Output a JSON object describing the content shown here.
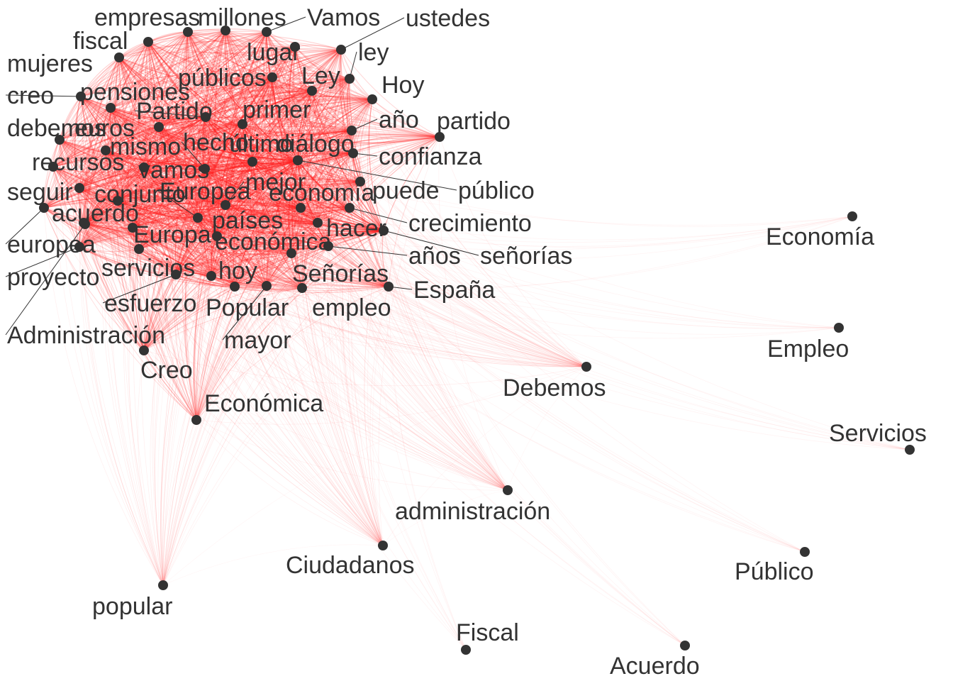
{
  "colors": {
    "edge": "#ff2020",
    "node": "#333333",
    "label": "#333333",
    "background": "#ffffff"
  },
  "nodes": [
    {
      "id": "empresas",
      "label": "empresas"
    },
    {
      "id": "millones",
      "label": "millones"
    },
    {
      "id": "Vamos",
      "label": "Vamos"
    },
    {
      "id": "ustedes",
      "label": "ustedes"
    },
    {
      "id": "fiscal",
      "label": "fiscal"
    },
    {
      "id": "lugar",
      "label": "lugar"
    },
    {
      "id": "ley",
      "label": "ley"
    },
    {
      "id": "mujeres",
      "label": "mujeres"
    },
    {
      "id": "publicos",
      "label": "públicos"
    },
    {
      "id": "Ley",
      "label": "Ley"
    },
    {
      "id": "Hoy",
      "label": "Hoy"
    },
    {
      "id": "creo",
      "label": "creo"
    },
    {
      "id": "pensiones",
      "label": "pensiones"
    },
    {
      "id": "Partido",
      "label": "Partido"
    },
    {
      "id": "primer",
      "label": "primer"
    },
    {
      "id": "ano",
      "label": "año"
    },
    {
      "id": "partido",
      "label": "partido"
    },
    {
      "id": "debemos",
      "label": "debemos"
    },
    {
      "id": "euros",
      "label": "euros"
    },
    {
      "id": "mismo",
      "label": "mismo"
    },
    {
      "id": "hecho",
      "label": "hecho"
    },
    {
      "id": "ultimo",
      "label": "último"
    },
    {
      "id": "dialogo",
      "label": "diálogo"
    },
    {
      "id": "confianza",
      "label": "confianza"
    },
    {
      "id": "recursos",
      "label": "recursos"
    },
    {
      "id": "vamos",
      "label": "vamos"
    },
    {
      "id": "mejor",
      "label": "mejor"
    },
    {
      "id": "seguir",
      "label": "seguir"
    },
    {
      "id": "conjunto",
      "label": "conjunto"
    },
    {
      "id": "Europea",
      "label": "Europea"
    },
    {
      "id": "economia",
      "label": "economía"
    },
    {
      "id": "puede",
      "label": "puede"
    },
    {
      "id": "publico",
      "label": "público"
    },
    {
      "id": "acuerdo",
      "label": "acuerdo"
    },
    {
      "id": "paises",
      "label": "países"
    },
    {
      "id": "hacer",
      "label": "hacer"
    },
    {
      "id": "crecimiento",
      "label": "crecimiento"
    },
    {
      "id": "europea",
      "label": "europea"
    },
    {
      "id": "Europa",
      "label": "Europa"
    },
    {
      "id": "economica",
      "label": "económica"
    },
    {
      "id": "anos",
      "label": "años"
    },
    {
      "id": "senorias",
      "label": "señorías"
    },
    {
      "id": "proyecto",
      "label": "proyecto"
    },
    {
      "id": "servicios",
      "label": "servicios"
    },
    {
      "id": "hoy",
      "label": "hoy"
    },
    {
      "id": "Senorias",
      "label": "Señorías"
    },
    {
      "id": "Espana",
      "label": "España"
    },
    {
      "id": "esfuerzo",
      "label": "esfuerzo"
    },
    {
      "id": "Popular",
      "label": "Popular"
    },
    {
      "id": "empleo",
      "label": "empleo"
    },
    {
      "id": "Administracion",
      "label": "Administración"
    },
    {
      "id": "mayor",
      "label": "mayor"
    },
    {
      "id": "Creo",
      "label": "Creo"
    },
    {
      "id": "Economica",
      "label": "Económica"
    },
    {
      "id": "Economia",
      "label": "Economía"
    },
    {
      "id": "Empleo",
      "label": "Empleo"
    },
    {
      "id": "Debemos",
      "label": "Debemos"
    },
    {
      "id": "Servicios",
      "label": "Servicios"
    },
    {
      "id": "administracion",
      "label": "administración"
    },
    {
      "id": "Ciudadanos",
      "label": "Ciudadanos"
    },
    {
      "id": "Publico",
      "label": "Público"
    },
    {
      "id": "popular",
      "label": "popular"
    },
    {
      "id": "Fiscal",
      "label": "Fiscal"
    },
    {
      "id": "Acuerdo",
      "label": "Acuerdo"
    }
  ]
}
